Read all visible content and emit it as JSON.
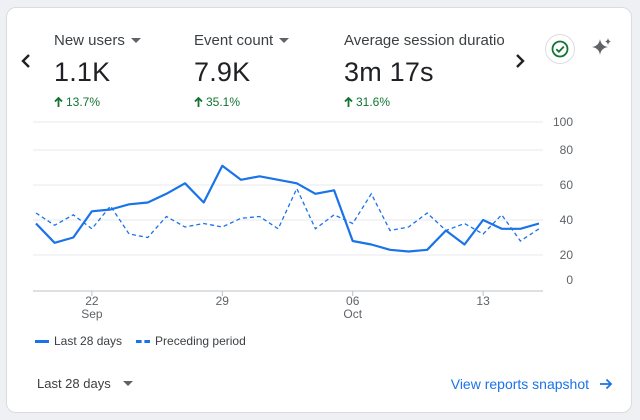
{
  "metrics": [
    {
      "label": "New users",
      "value": "1.1K",
      "change": "13.7%"
    },
    {
      "label": "Event count",
      "value": "7.9K",
      "change": "35.1%"
    },
    {
      "label": "Average session duration",
      "value": "3m 17s",
      "change": "31.6%"
    }
  ],
  "chart_data": {
    "type": "line",
    "y_ticks": [
      "100",
      "80",
      "60",
      "40",
      "20",
      "0"
    ],
    "ylim": [
      0,
      100
    ],
    "x_ticks": [
      {
        "day": 3,
        "label": "22",
        "sublabel": "Sep"
      },
      {
        "day": 10,
        "label": "29",
        "sublabel": ""
      },
      {
        "day": 17,
        "label": "06",
        "sublabel": "Oct"
      },
      {
        "day": 24,
        "label": "13",
        "sublabel": ""
      }
    ],
    "grid": true,
    "series": [
      {
        "name": "Last 28 days",
        "style": "solid",
        "values": [
          38,
          27,
          30,
          45,
          46,
          49,
          50,
          55,
          61,
          50,
          71,
          63,
          65,
          63,
          61,
          55,
          57,
          28,
          26,
          23,
          22,
          23,
          34,
          26,
          40,
          35,
          35,
          38
        ]
      },
      {
        "name": "Preceding period",
        "style": "dashed",
        "values": [
          44,
          37,
          43,
          35,
          48,
          32,
          30,
          42,
          36,
          38,
          36,
          41,
          42,
          35,
          58,
          35,
          43,
          38,
          55,
          34,
          36,
          44,
          34,
          38,
          32,
          43,
          28,
          35
        ]
      }
    ]
  },
  "legend": {
    "current": "Last 28 days",
    "previous": "Preceding period"
  },
  "footer": {
    "range_label": "Last 28 days",
    "link_label": "View reports snapshot"
  },
  "colors": {
    "line": "#1a73e8",
    "positive": "#137333"
  }
}
